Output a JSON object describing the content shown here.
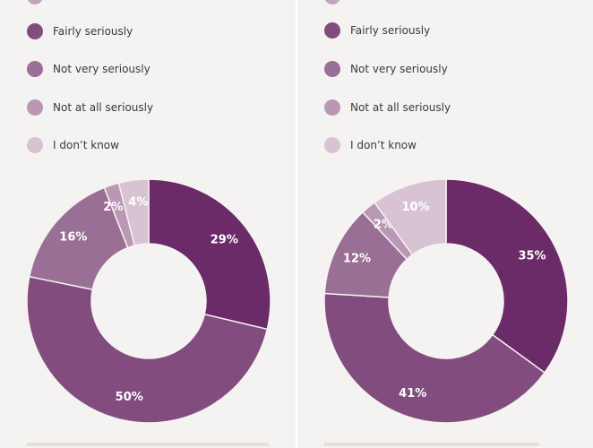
{
  "colors": {
    "background": "#f5f3f1",
    "very_seriously": "#6b2a68",
    "fairly_seriously": "#824d7e",
    "not_very_seriously": "#9a6f95",
    "not_at_all_seriously": "#bb97b6",
    "dont_know": "#d8c3d3"
  },
  "legend": [
    {
      "label": "Fairly seriously",
      "color": "#824d7e"
    },
    {
      "label": "Not very seriously",
      "color": "#9a6f95"
    },
    {
      "label": "Not at all seriously",
      "color": "#bb97b6"
    },
    {
      "label": "I don’t know",
      "color": "#d8c3d3"
    }
  ],
  "chart_data": [
    {
      "type": "pie",
      "donut": true,
      "slices": [
        {
          "value": 29,
          "label": "29%",
          "color": "#6b2a68"
        },
        {
          "value": 50,
          "label": "50%",
          "color": "#824d7e"
        },
        {
          "value": 16,
          "label": "16%",
          "color": "#9a6f95"
        },
        {
          "value": 2,
          "label": "2%",
          "color": "#bb97b6"
        },
        {
          "value": 4,
          "label": "4%",
          "color": "#d8c3d3"
        }
      ]
    },
    {
      "type": "pie",
      "donut": true,
      "slices": [
        {
          "value": 35,
          "label": "35%",
          "color": "#6b2a68"
        },
        {
          "value": 41,
          "label": "41%",
          "color": "#824d7e"
        },
        {
          "value": 12,
          "label": "12%",
          "color": "#9a6f95"
        },
        {
          "value": 2,
          "label": "2%",
          "color": "#bb97b6"
        },
        {
          "value": 10,
          "label": "10%",
          "color": "#d8c3d3"
        }
      ]
    }
  ]
}
